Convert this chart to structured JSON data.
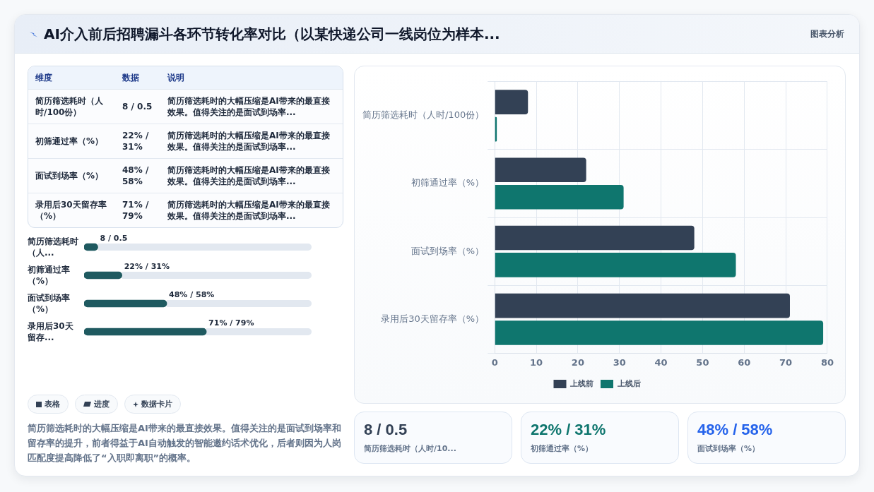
{
  "chart_data": [
    {
      "type": "other",
      "title": "AI介入前后招聘漏斗各环节转化率对比（以某快递公司一线岗位为样本...",
      "annotations": [
        "图表分析"
      ]
    },
    {
      "type": "other",
      "annotations": [
        "维度",
        "数据",
        "说明",
        "简历筛选耗时（人时/100份）",
        "8 / 0.5",
        "简历筛选耗时的大幅压缩是AI带来的最直接效果。值得关注的是面试到场率...",
        "初筛通过率（%）",
        "22% / 31%",
        "简历筛选耗时的大幅压缩是AI带来的最直接效果。值得关注的是面试到场率...",
        "面试到场率（%）",
        "48% / 58%",
        "简历筛选耗时的大幅压缩是AI带来的最直接效果。值得关注的是面试到场率...",
        "录用后30天留存率（%）",
        "71% / 79%",
        "简历筛选耗时的大幅压缩是AI带来的最直接效果。值得关注的是面试到场率..."
      ]
    },
    {
      "type": "bar",
      "orientation": "horizontal",
      "categories": [
        "简历筛选耗时（人...",
        "初筛通过率（%）",
        "面试到场率（%）",
        "录用后30天留存..."
      ],
      "values": [
        8,
        22,
        48,
        71
      ],
      "value_labels": [
        "8 / 0.5",
        "22% / 31%",
        "48% / 58%",
        "71% / 79%"
      ],
      "color": "#1f5a60",
      "tick_labels": false
    },
    {
      "type": "other",
      "annotations": [
        "表格",
        "进度",
        "数据卡片",
        "简历筛选耗时的大幅压缩是AI带来的最直接效果。值得关注的是面试到场率和留存率的提升，前者得益于AI自动触发的智能邀约话术优化，后者则因为人岗匹配度提高降低了“入职即离职”的概率。"
      ]
    },
    {
      "type": "bar",
      "orientation": "horizontal",
      "categories": [
        "简历筛选耗时（人时/100份）",
        "初筛通过率（%）",
        "面试到场率（%）",
        "录用后30天留存率（%）"
      ],
      "series": [
        {
          "name": "上线前",
          "color": "#334155",
          "values": [
            8,
            22,
            48,
            71
          ]
        },
        {
          "name": "上线后",
          "color": "#0f766e",
          "values": [
            0.5,
            31,
            58,
            79
          ]
        }
      ],
      "xlim": [
        0,
        80
      ],
      "xticks": [
        0,
        10,
        20,
        30,
        40,
        50,
        60,
        70,
        80
      ],
      "grid": true,
      "legend": "bottom"
    },
    {
      "type": "other",
      "annotations": [
        "8 / 0.5",
        "简历筛选耗时（人时/10...",
        "22% / 31%",
        "初筛通过率（%）",
        "48% / 58%",
        "面试到场率（%）"
      ],
      "colors": [
        "#334155",
        "#0f766e",
        "#2563eb"
      ]
    }
  ]
}
